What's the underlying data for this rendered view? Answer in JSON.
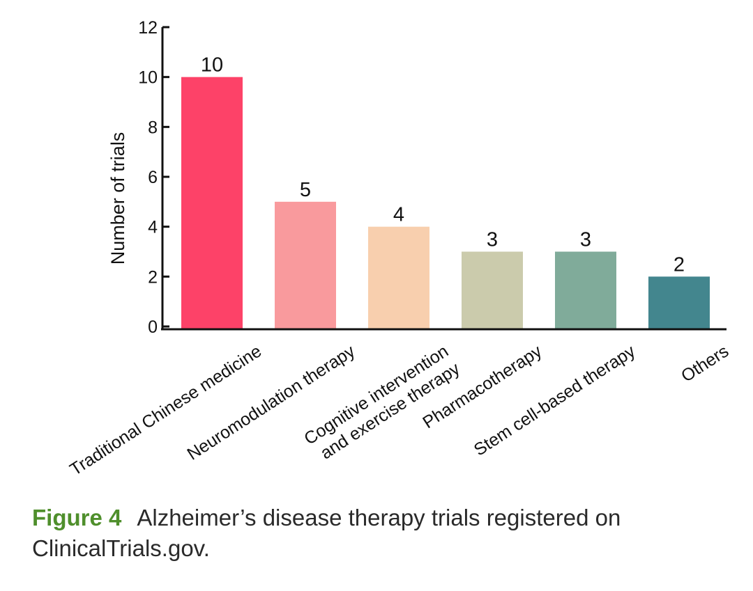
{
  "chart_data": {
    "type": "bar",
    "title": "",
    "xlabel": "",
    "ylabel": "Number of trials",
    "ylim": [
      0,
      12
    ],
    "yticks": [
      0,
      2,
      4,
      6,
      8,
      10,
      12
    ],
    "grid": false,
    "categories": [
      [
        "Traditional Chinese medicine"
      ],
      [
        "Neuromodulation therapy"
      ],
      [
        "Cognitive intervention",
        "and exercise therapy"
      ],
      [
        "Pharmacotherapy"
      ],
      [
        "Stem cell-based therapy"
      ],
      [
        "Others"
      ]
    ],
    "values": [
      10,
      5,
      4,
      3,
      3,
      2
    ],
    "data_labels": [
      "10",
      "5",
      "4",
      "3",
      "3",
      "2"
    ],
    "colors": [
      "#fd4268",
      "#f99a9d",
      "#f8cfae",
      "#cbcbac",
      "#80ab9a",
      "#43868e"
    ]
  },
  "caption": {
    "label": "Figure 4",
    "text": "Alzheimer’s disease therapy trials registered on ClinicalTrials.gov."
  }
}
